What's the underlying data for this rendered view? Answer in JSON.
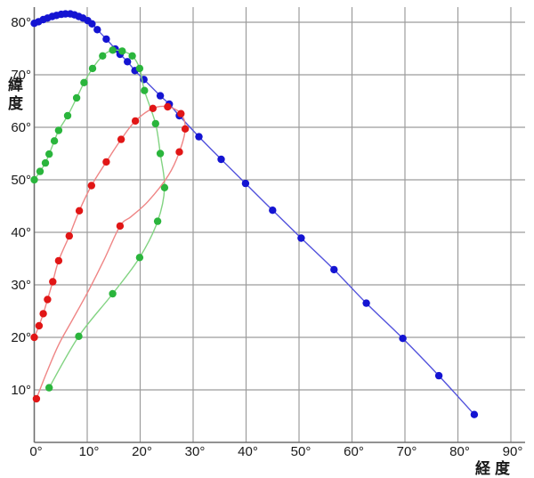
{
  "chart_data": {
    "type": "line",
    "title": "",
    "xlabel": "経度",
    "ylabel": "緯度",
    "grid": true,
    "legend": "none",
    "xlim": [
      0,
      92
    ],
    "ylim": [
      0,
      83
    ],
    "x_ticks": [
      {
        "value": 0,
        "label": "0°"
      },
      {
        "value": 10,
        "label": "10°"
      },
      {
        "value": 20,
        "label": "20°"
      },
      {
        "value": 30,
        "label": "30°"
      },
      {
        "value": 40,
        "label": "40°"
      },
      {
        "value": 50,
        "label": "50°"
      },
      {
        "value": 60,
        "label": "60°"
      },
      {
        "value": 70,
        "label": "70°"
      },
      {
        "value": 80,
        "label": "80°"
      },
      {
        "value": 90,
        "label": "90°"
      }
    ],
    "y_ticks": [
      {
        "value": 10,
        "label": "10°"
      },
      {
        "value": 20,
        "label": "20°"
      },
      {
        "value": 30,
        "label": "30°"
      },
      {
        "value": 40,
        "label": "40°"
      },
      {
        "value": 50,
        "label": "50°"
      },
      {
        "value": 60,
        "label": "60°"
      },
      {
        "value": 70,
        "label": "70°"
      },
      {
        "value": 80,
        "label": "80°"
      }
    ],
    "series": [
      {
        "name": "blue-track",
        "dot_color": "#1414d2",
        "line_color": "#5252dc",
        "dots": [
          [
            0,
            79.8
          ],
          [
            0.8,
            80.1
          ],
          [
            1.7,
            80.5
          ],
          [
            2.5,
            80.8
          ],
          [
            3.4,
            81.1
          ],
          [
            4.2,
            81.3
          ],
          [
            5.1,
            81.5
          ],
          [
            5.9,
            81.6
          ],
          [
            6.8,
            81.6
          ],
          [
            7.6,
            81.4
          ],
          [
            8.4,
            81.1
          ],
          [
            9.2,
            80.8
          ],
          [
            10.1,
            80.3
          ],
          [
            10.9,
            79.7
          ],
          [
            11.9,
            78.6
          ],
          [
            13.6,
            76.8
          ],
          [
            15.3,
            74.9
          ],
          [
            16.2,
            73.9
          ],
          [
            17.6,
            72.5
          ],
          [
            19.0,
            70.8
          ],
          [
            20.7,
            69.1
          ],
          [
            23.8,
            66.0
          ],
          [
            25.5,
            64.4
          ],
          [
            27.4,
            62.2
          ],
          [
            31.1,
            58.2
          ],
          [
            35.3,
            53.9
          ],
          [
            39.9,
            49.3
          ],
          [
            45.0,
            44.2
          ],
          [
            50.4,
            38.9
          ],
          [
            56.6,
            32.9
          ],
          [
            62.7,
            26.5
          ],
          [
            69.6,
            19.8
          ],
          [
            76.4,
            12.7
          ],
          [
            83.1,
            5.3
          ]
        ],
        "path": [
          [
            0,
            79.8
          ],
          [
            0.8,
            80.1
          ],
          [
            1.7,
            80.5
          ],
          [
            2.5,
            80.8
          ],
          [
            3.4,
            81.1
          ],
          [
            4.2,
            81.3
          ],
          [
            5.1,
            81.5
          ],
          [
            5.9,
            81.6
          ],
          [
            6.8,
            81.6
          ],
          [
            7.6,
            81.4
          ],
          [
            8.4,
            81.1
          ],
          [
            9.2,
            80.8
          ],
          [
            10.1,
            80.3
          ],
          [
            10.9,
            79.7
          ],
          [
            11.9,
            78.6
          ],
          [
            13.6,
            76.8
          ],
          [
            15.3,
            74.9
          ],
          [
            16.2,
            73.9
          ],
          [
            17.6,
            72.5
          ],
          [
            19.0,
            70.8
          ],
          [
            20.7,
            69.1
          ],
          [
            23.8,
            66.0
          ],
          [
            25.5,
            64.4
          ],
          [
            27.4,
            62.2
          ],
          [
            31.1,
            58.2
          ],
          [
            35.3,
            53.9
          ],
          [
            39.9,
            49.3
          ],
          [
            45.0,
            44.2
          ],
          [
            50.4,
            38.9
          ],
          [
            56.6,
            32.9
          ],
          [
            62.7,
            26.5
          ],
          [
            69.6,
            19.8
          ],
          [
            76.4,
            12.7
          ],
          [
            83.1,
            5.3
          ]
        ]
      },
      {
        "name": "green-track",
        "dot_color": "#2ab53c",
        "line_color": "#82d382",
        "dots": [
          [
            0,
            50.0
          ],
          [
            1.1,
            51.6
          ],
          [
            2.1,
            53.2
          ],
          [
            2.8,
            54.9
          ],
          [
            3.8,
            57.4
          ],
          [
            4.6,
            59.4
          ],
          [
            6.3,
            62.2
          ],
          [
            8.0,
            65.6
          ],
          [
            9.4,
            68.5
          ],
          [
            11.0,
            71.2
          ],
          [
            12.9,
            73.6
          ],
          [
            14.8,
            74.7
          ],
          [
            16.6,
            74.5
          ],
          [
            18.5,
            73.6
          ],
          [
            19.9,
            71.2
          ],
          [
            20.8,
            67.0
          ],
          [
            22.9,
            60.7
          ],
          [
            23.8,
            55.0
          ],
          [
            24.6,
            48.5
          ],
          [
            23.3,
            42.1
          ],
          [
            19.9,
            35.2
          ],
          [
            14.8,
            28.3
          ],
          [
            8.4,
            20.2
          ],
          [
            2.8,
            10.4
          ]
        ],
        "path": [
          [
            0,
            50.0
          ],
          [
            1.1,
            51.6
          ],
          [
            2.1,
            53.2
          ],
          [
            2.8,
            54.9
          ],
          [
            3.8,
            57.4
          ],
          [
            4.6,
            59.4
          ],
          [
            6.3,
            62.2
          ],
          [
            8.0,
            65.6
          ],
          [
            9.4,
            68.5
          ],
          [
            11.0,
            71.2
          ],
          [
            12.9,
            73.6
          ],
          [
            14.8,
            74.7
          ],
          [
            16.6,
            74.5
          ],
          [
            18.5,
            73.6
          ],
          [
            19.9,
            71.2
          ],
          [
            20.8,
            67.0
          ],
          [
            22.9,
            60.7
          ],
          [
            23.8,
            55.0
          ],
          [
            24.6,
            48.5
          ],
          [
            23.3,
            42.1
          ],
          [
            19.9,
            35.2
          ],
          [
            14.8,
            28.3
          ],
          [
            8.4,
            20.2
          ],
          [
            2.8,
            10.4
          ]
        ]
      },
      {
        "name": "red-track",
        "dot_color": "#e11616",
        "line_color": "#ef8585",
        "dots": [
          [
            0,
            20.0
          ],
          [
            0.9,
            22.2
          ],
          [
            1.7,
            24.5
          ],
          [
            2.5,
            27.2
          ],
          [
            3.5,
            30.6
          ],
          [
            4.6,
            34.6
          ],
          [
            6.6,
            39.3
          ],
          [
            8.5,
            44.1
          ],
          [
            10.8,
            48.9
          ],
          [
            13.6,
            53.4
          ],
          [
            16.4,
            57.7
          ],
          [
            19.1,
            61.2
          ],
          [
            22.4,
            63.6
          ],
          [
            25.2,
            63.9
          ],
          [
            27.7,
            62.6
          ],
          [
            28.5,
            59.7
          ],
          [
            27.4,
            55.3
          ],
          [
            16.2,
            41.2
          ],
          [
            0.4,
            8.3
          ]
        ],
        "path": [
          [
            0,
            20.0
          ],
          [
            0.9,
            22.2
          ],
          [
            1.7,
            24.5
          ],
          [
            2.5,
            27.2
          ],
          [
            3.5,
            30.6
          ],
          [
            4.6,
            34.6
          ],
          [
            6.6,
            39.3
          ],
          [
            8.5,
            44.1
          ],
          [
            10.8,
            48.9
          ],
          [
            13.6,
            53.4
          ],
          [
            16.4,
            57.7
          ],
          [
            19.1,
            61.2
          ],
          [
            22.4,
            63.6
          ],
          [
            25.2,
            63.9
          ],
          [
            27.7,
            62.6
          ],
          [
            28.5,
            59.7
          ],
          [
            27.4,
            55.3
          ],
          [
            25.3,
            50.8
          ],
          [
            21.5,
            45.9
          ],
          [
            18.3,
            43.0
          ],
          [
            16.2,
            41.2
          ],
          [
            13.2,
            34.8
          ],
          [
            10.3,
            29.0
          ],
          [
            7.3,
            23.5
          ],
          [
            4.6,
            18.6
          ],
          [
            2.3,
            13.2
          ],
          [
            0.4,
            8.3
          ]
        ]
      }
    ],
    "colors": {
      "grid": "#9c9c9c",
      "axis": "#6e6e6e",
      "background": "#ffffff",
      "tick_text": "#1a1a1a"
    }
  }
}
